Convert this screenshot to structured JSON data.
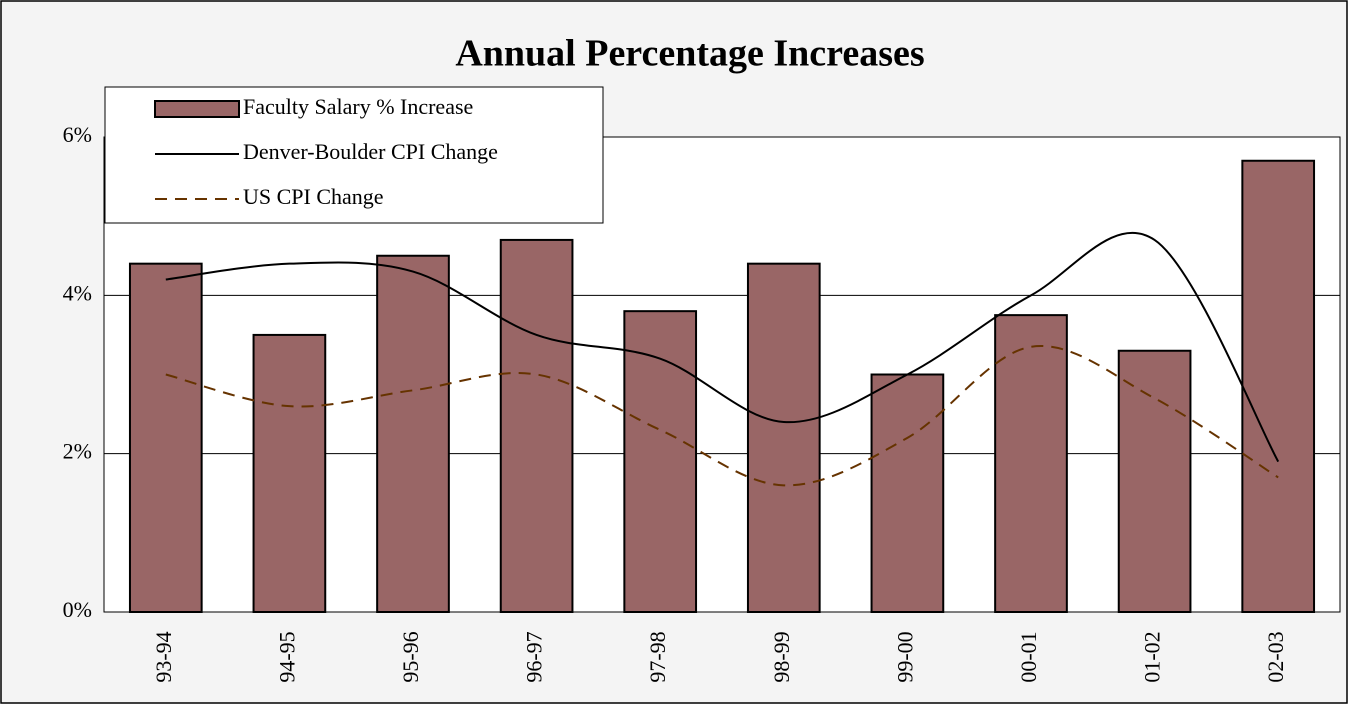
{
  "chart_data": {
    "type": "bar",
    "title": "Annual Percentage Increases",
    "categories": [
      "93-94",
      "94-95",
      "95-96",
      "96-97",
      "97-98",
      "98-99",
      "99-00",
      "00-01",
      "01-02",
      "02-03"
    ],
    "series": [
      {
        "name": "Faculty Salary % Increase",
        "type": "bar",
        "color": "#996666",
        "values": [
          4.4,
          3.5,
          4.5,
          4.7,
          3.8,
          4.4,
          3.0,
          3.75,
          3.3,
          5.7
        ]
      },
      {
        "name": "Denver-Boulder CPI Change",
        "type": "line",
        "color": "#000000",
        "values": [
          4.2,
          4.4,
          4.3,
          3.5,
          3.2,
          2.4,
          3.0,
          4.0,
          4.7,
          1.9
        ]
      },
      {
        "name": "US CPI Change",
        "type": "line",
        "dashed": true,
        "color": "#663300",
        "values": [
          3.0,
          2.6,
          2.8,
          3.0,
          2.3,
          1.6,
          2.2,
          3.35,
          2.7,
          1.7
        ]
      }
    ],
    "ylim": [
      0,
      6
    ],
    "yticks": [
      {
        "value": 0,
        "label": "0%"
      },
      {
        "value": 2,
        "label": "2%"
      },
      {
        "value": 4,
        "label": "4%"
      },
      {
        "value": 6,
        "label": "6%"
      }
    ],
    "grid": true,
    "legend": "top-left"
  }
}
